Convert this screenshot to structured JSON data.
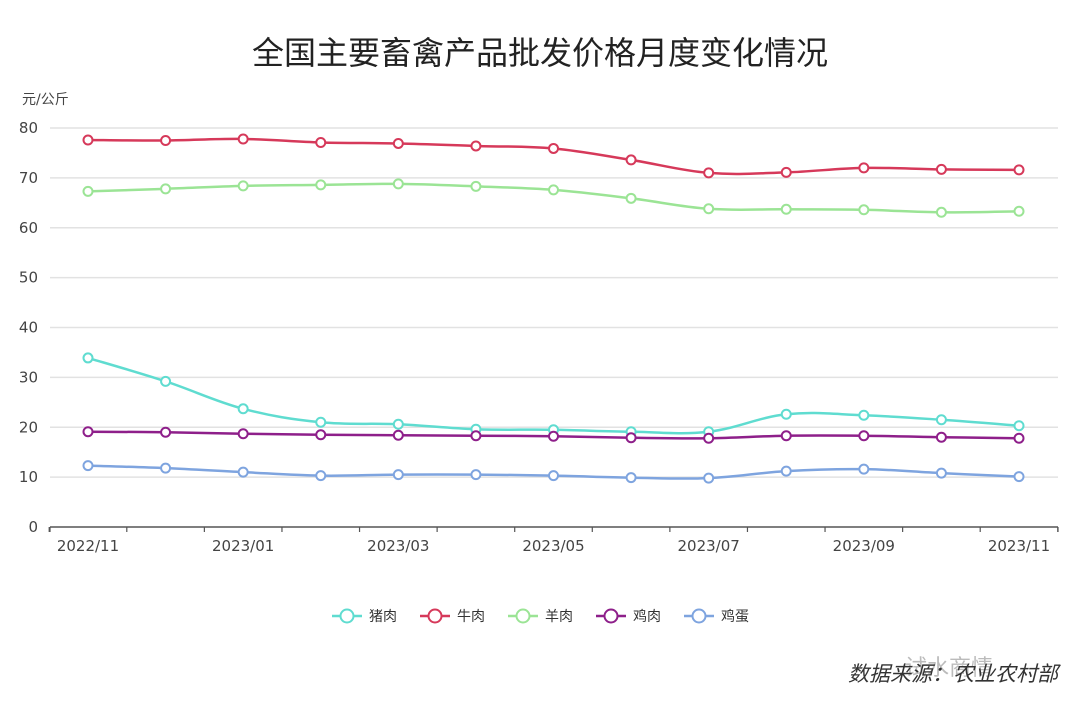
{
  "chart_data": {
    "type": "line",
    "title": "全国主要畜禽产品批发价格月度变化情况",
    "y_unit": "元/公斤",
    "ylim": [
      0,
      80
    ],
    "y_ticks": [
      0,
      10,
      20,
      30,
      40,
      50,
      60,
      70,
      80
    ],
    "categories": [
      "2022/11",
      "2022/12",
      "2023/01",
      "2023/02",
      "2023/03",
      "2023/04",
      "2023/05",
      "2023/06",
      "2023/07",
      "2023/08",
      "2023/09",
      "2023/10",
      "2023/11"
    ],
    "x_tick_labels": [
      "2022/11",
      "2023/01",
      "2023/03",
      "2023/05",
      "2023/07",
      "2023/09",
      "2023/11"
    ],
    "grid": true,
    "legend_position": "bottom",
    "series": [
      {
        "name": "猪肉",
        "color": "#5fdcd0",
        "values": [
          33.9,
          29.2,
          23.7,
          21.0,
          20.6,
          19.6,
          19.5,
          19.1,
          19.1,
          22.6,
          22.4,
          21.5,
          20.3
        ]
      },
      {
        "name": "牛肉",
        "color": "#d6395a",
        "values": [
          77.6,
          77.5,
          77.8,
          77.1,
          76.9,
          76.4,
          75.9,
          73.6,
          71.0,
          71.1,
          72.0,
          71.7,
          71.6
        ]
      },
      {
        "name": "羊肉",
        "color": "#9be495",
        "values": [
          67.3,
          67.8,
          68.4,
          68.6,
          68.8,
          68.3,
          67.6,
          65.9,
          63.8,
          63.7,
          63.6,
          63.1,
          63.3
        ]
      },
      {
        "name": "鸡肉",
        "color": "#8e1f8a",
        "values": [
          19.1,
          19.0,
          18.7,
          18.5,
          18.4,
          18.3,
          18.2,
          17.9,
          17.8,
          18.3,
          18.3,
          18.0,
          17.8
        ]
      },
      {
        "name": "鸡蛋",
        "color": "#7ea4df",
        "values": [
          12.3,
          11.8,
          11.0,
          10.3,
          10.5,
          10.5,
          10.3,
          9.9,
          9.8,
          11.2,
          11.6,
          10.8,
          10.1
        ]
      }
    ]
  },
  "source": "数据来源：农业农村部",
  "watermark": "试水商情"
}
